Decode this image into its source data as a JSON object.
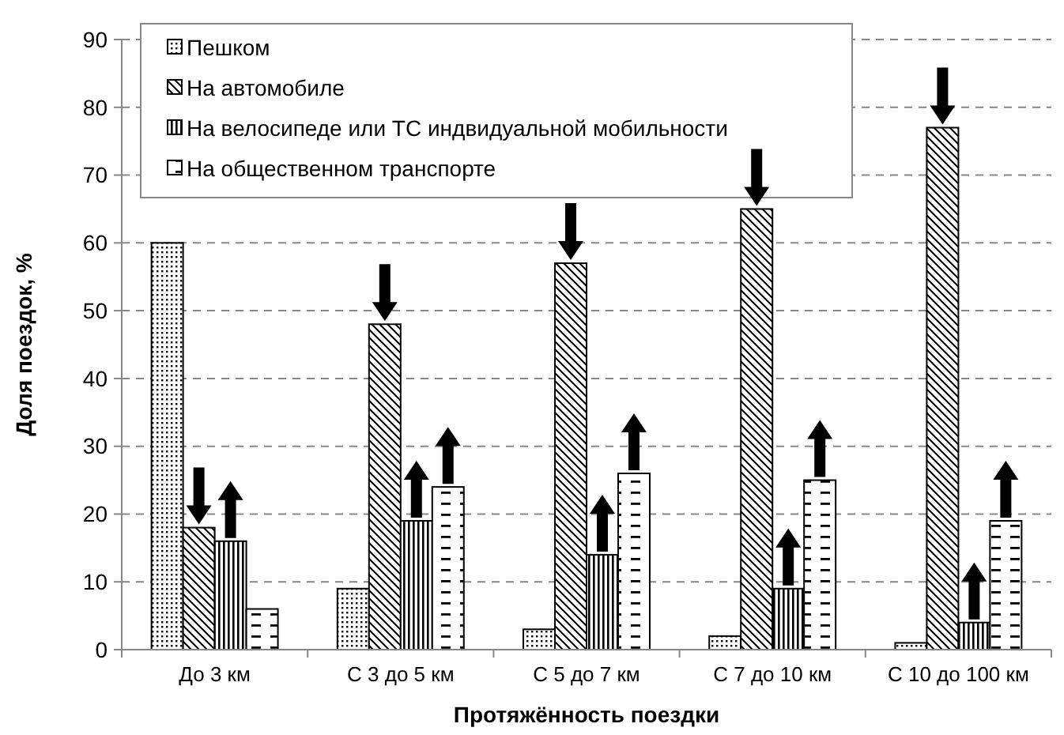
{
  "chart_data": {
    "type": "bar",
    "xlabel": "Протяжённость поездки",
    "ylabel": "Доля поездок, %",
    "categories": [
      "До 3 км",
      "С 3 до 5 км",
      "С 5 до 7 км",
      "С 7 до 10 км",
      "С 10 до 100 км"
    ],
    "series": [
      {
        "name": "Пешком",
        "color": "#000000",
        "values": [
          60,
          9,
          3,
          2,
          1
        ]
      },
      {
        "name": "На автомобиле",
        "color": "#000000",
        "values": [
          18,
          48,
          57,
          65,
          77
        ]
      },
      {
        "name": "На велосипеде или ТС индвидуальной мобильности",
        "color": "#000000",
        "values": [
          16,
          19,
          14,
          9,
          4
        ]
      },
      {
        "name": "На общественном транспорте",
        "color": "#000000",
        "values": [
          6,
          24,
          26,
          25,
          19
        ]
      }
    ],
    "ylim": [
      0,
      90
    ],
    "yticks": [
      0,
      10,
      20,
      30,
      40,
      50,
      60,
      70,
      80,
      90
    ],
    "grid": "y",
    "legend": "top left"
  }
}
